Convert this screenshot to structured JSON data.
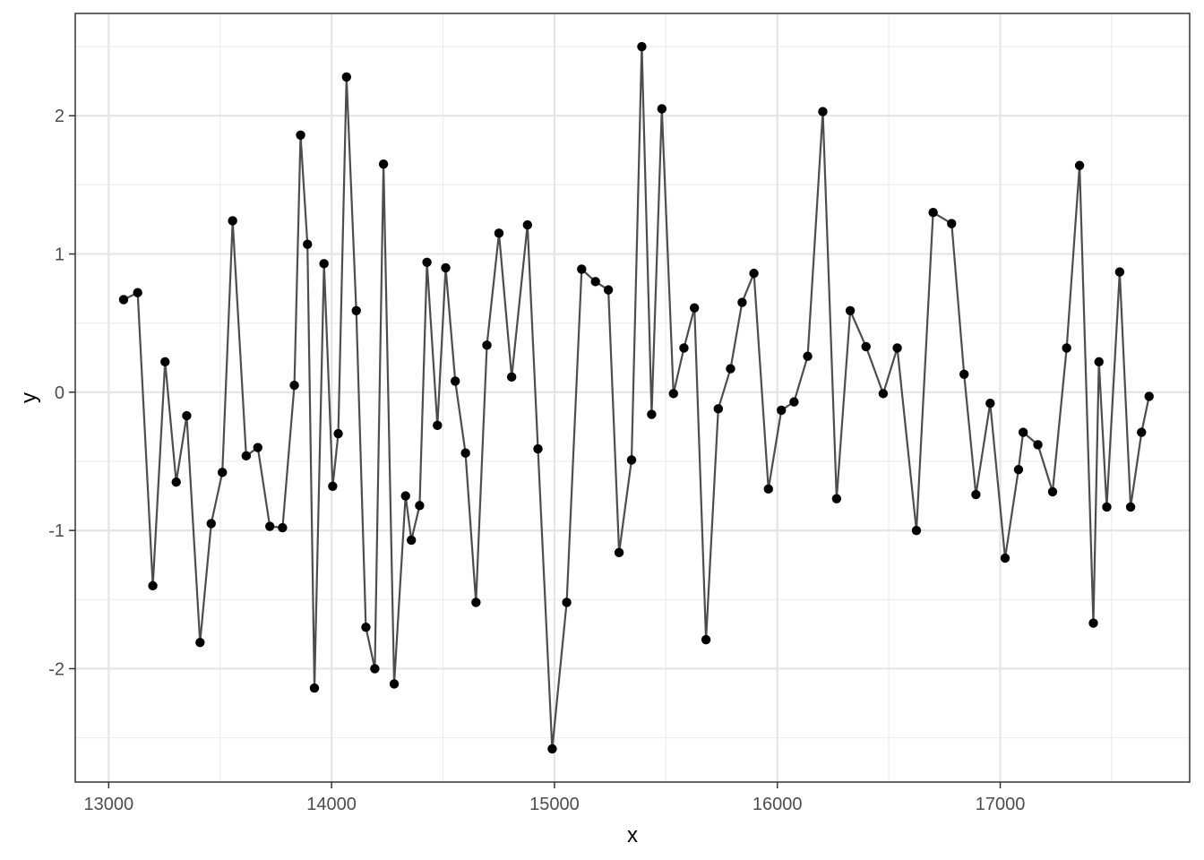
{
  "chart_data": {
    "type": "line",
    "title": "",
    "xlabel": "x",
    "ylabel": "y",
    "xlim": [
      12850,
      17850
    ],
    "ylim": [
      -2.82,
      2.74
    ],
    "x_ticks": [
      13000,
      14000,
      15000,
      16000,
      17000
    ],
    "x_tick_labels": [
      "13000",
      "14000",
      "15000",
      "16000",
      "17000"
    ],
    "y_ticks": [
      -2,
      -1,
      0,
      1,
      2
    ],
    "y_tick_labels": [
      "-2",
      "-1",
      "0",
      "1",
      "2"
    ],
    "grid": true,
    "markers": true,
    "series": [
      {
        "x": [
          13067,
          13130,
          13198,
          13253,
          13303,
          13350,
          13410,
          13460,
          13510,
          13556,
          13617,
          13669,
          13723,
          13780,
          13833,
          13861,
          13892,
          13923,
          13966,
          14005,
          14030,
          14067,
          14111,
          14154,
          14194,
          14233,
          14281,
          14332,
          14358,
          14395,
          14428,
          14475,
          14512,
          14555,
          14601,
          14648,
          14697,
          14751,
          14808,
          14879,
          14926,
          14990,
          15055,
          15122,
          15184,
          15242,
          15290,
          15346,
          15392,
          15436,
          15482,
          15534,
          15581,
          15628,
          15680,
          15735,
          15790,
          15842,
          15895,
          15960,
          16018,
          16075,
          16136,
          16204,
          16266,
          16327,
          16398,
          16475,
          16538,
          16624,
          16699,
          16782,
          16838,
          16891,
          16955,
          17022,
          17082,
          17103,
          17169,
          17235,
          17298,
          17356,
          17418,
          17443,
          17478,
          17536,
          17585,
          17634,
          17668
        ],
        "y": [
          0.67,
          0.72,
          -1.4,
          0.22,
          -0.65,
          -0.17,
          -1.81,
          -0.95,
          -0.58,
          1.24,
          -0.46,
          -0.4,
          -0.97,
          -0.98,
          0.05,
          1.86,
          1.07,
          -2.14,
          0.93,
          -0.68,
          -0.3,
          2.28,
          0.59,
          -1.7,
          -2.0,
          1.65,
          -2.11,
          -0.75,
          -1.07,
          -0.82,
          0.94,
          -0.24,
          0.9,
          0.08,
          -0.44,
          -1.52,
          0.34,
          1.15,
          0.11,
          1.21,
          -0.41,
          -2.58,
          -1.52,
          0.89,
          0.8,
          0.74,
          -1.16,
          -0.49,
          2.5,
          -0.16,
          2.05,
          -0.01,
          0.32,
          0.61,
          -1.79,
          -0.12,
          0.17,
          0.65,
          0.86,
          -0.7,
          -0.13,
          -0.07,
          0.26,
          2.03,
          -0.77,
          0.59,
          0.33,
          -0.01,
          0.32,
          -1.0,
          1.3,
          1.22,
          0.13,
          -0.74,
          -0.08,
          -1.2,
          -0.56,
          -0.29,
          -0.38,
          -0.72,
          0.32,
          1.64,
          -1.67,
          0.22,
          -0.83,
          0.87,
          -0.83,
          -0.29,
          -0.03
        ],
        "line_color": "#4d4d4d",
        "point_color": "#000000"
      }
    ]
  }
}
